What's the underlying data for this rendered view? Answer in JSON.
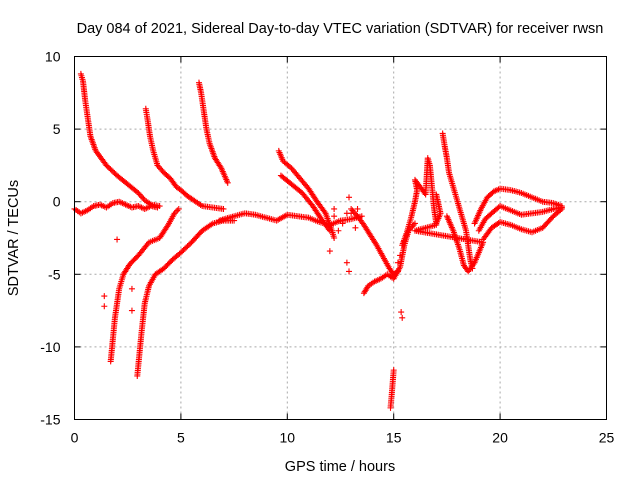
{
  "chart_data": {
    "type": "scatter",
    "title": "Day 084 of 2021, Sidereal Day-to-day VTEC variation (SDTVAR) for receiver rwsn",
    "xlabel": "GPS time / hours",
    "ylabel": "SDTVAR / TECUs",
    "xlim": [
      0,
      25
    ],
    "ylim": [
      -15,
      10
    ],
    "xticks": [
      0,
      5,
      10,
      15,
      20,
      25
    ],
    "yticks": [
      -15,
      -10,
      -5,
      0,
      5,
      10
    ],
    "grid": true,
    "marker": "+",
    "color": "#ff0000",
    "series": [
      {
        "name": "arc-1-descending",
        "points": [
          [
            0.3,
            8.8
          ],
          [
            0.4,
            8.3
          ],
          [
            0.5,
            7.0
          ],
          [
            0.6,
            6.0
          ],
          [
            0.75,
            4.5
          ],
          [
            1.0,
            3.5
          ],
          [
            1.5,
            2.5
          ],
          [
            2.0,
            1.8
          ],
          [
            2.5,
            1.2
          ],
          [
            3.0,
            0.6
          ],
          [
            3.3,
            0.1
          ],
          [
            3.6,
            -0.2
          ],
          [
            4.0,
            -0.3
          ]
        ]
      },
      {
        "name": "baseline-early",
        "points": [
          [
            0.0,
            -0.5
          ],
          [
            0.3,
            -0.8
          ],
          [
            0.6,
            -0.6
          ],
          [
            0.9,
            -0.3
          ],
          [
            1.2,
            -0.2
          ],
          [
            1.5,
            -0.4
          ],
          [
            1.8,
            -0.1
          ],
          [
            2.1,
            0.0
          ],
          [
            2.4,
            -0.2
          ],
          [
            2.7,
            -0.4
          ],
          [
            3.0,
            -0.3
          ],
          [
            3.3,
            -0.5
          ],
          [
            3.6,
            -0.3
          ],
          [
            3.9,
            -0.4
          ]
        ]
      },
      {
        "name": "arc-2-descending",
        "points": [
          [
            3.35,
            6.4
          ],
          [
            3.45,
            5.5
          ],
          [
            3.55,
            4.5
          ],
          [
            3.7,
            3.5
          ],
          [
            3.9,
            2.5
          ],
          [
            4.2,
            2.0
          ],
          [
            4.5,
            1.6
          ],
          [
            4.8,
            1.0
          ],
          [
            5.0,
            0.8
          ],
          [
            5.3,
            0.4
          ],
          [
            5.7,
            0.0
          ],
          [
            6.0,
            -0.3
          ],
          [
            6.5,
            -0.4
          ],
          [
            7.0,
            -0.5
          ]
        ]
      },
      {
        "name": "arc-3-descending",
        "points": [
          [
            5.85,
            8.2
          ],
          [
            5.95,
            7.5
          ],
          [
            6.05,
            6.5
          ],
          [
            6.2,
            5.0
          ],
          [
            6.35,
            4.0
          ],
          [
            6.6,
            3.0
          ],
          [
            6.9,
            2.3
          ],
          [
            7.2,
            1.3
          ]
        ]
      },
      {
        "name": "rise-from-minus-11",
        "points": [
          [
            1.7,
            -11.0
          ],
          [
            1.8,
            -9.5
          ],
          [
            1.9,
            -8.0
          ],
          [
            2.0,
            -7.0
          ],
          [
            2.1,
            -6.0
          ],
          [
            2.3,
            -5.0
          ],
          [
            2.6,
            -4.3
          ],
          [
            3.0,
            -3.7
          ],
          [
            3.5,
            -2.8
          ],
          [
            4.0,
            -2.5
          ],
          [
            4.4,
            -1.6
          ],
          [
            4.7,
            -0.8
          ],
          [
            4.9,
            -0.5
          ]
        ]
      },
      {
        "name": "rise-from-minus-12",
        "points": [
          [
            2.95,
            -12.0
          ],
          [
            3.05,
            -10.5
          ],
          [
            3.15,
            -9.0
          ],
          [
            3.3,
            -7.0
          ],
          [
            3.5,
            -5.8
          ],
          [
            3.8,
            -5.0
          ],
          [
            4.2,
            -4.6
          ],
          [
            4.6,
            -4.0
          ],
          [
            5.0,
            -3.5
          ],
          [
            5.5,
            -2.8
          ],
          [
            6.0,
            -2.0
          ],
          [
            6.5,
            -1.5
          ],
          [
            7.0,
            -1.3
          ],
          [
            7.5,
            -1.3
          ]
        ]
      },
      {
        "name": "isolated-early",
        "points": [
          [
            1.4,
            -6.5
          ],
          [
            1.4,
            -7.2
          ],
          [
            2.0,
            -2.6
          ],
          [
            2.7,
            -6.0
          ],
          [
            2.7,
            -7.5
          ]
        ]
      },
      {
        "name": "mid-baseline",
        "points": [
          [
            6.8,
            -1.3
          ],
          [
            7.5,
            -1.0
          ],
          [
            8.0,
            -0.8
          ],
          [
            8.5,
            -0.9
          ],
          [
            9.0,
            -1.1
          ],
          [
            9.5,
            -1.3
          ],
          [
            10.0,
            -0.9
          ],
          [
            10.5,
            -1.0
          ],
          [
            11.0,
            -1.1
          ],
          [
            11.5,
            -1.4
          ],
          [
            12.0,
            -1.6
          ],
          [
            12.5,
            -1.3
          ],
          [
            13.0,
            -1.2
          ],
          [
            13.5,
            -1.0
          ]
        ]
      },
      {
        "name": "arc-4-descending",
        "points": [
          [
            9.6,
            3.5
          ],
          [
            9.8,
            2.8
          ],
          [
            10.2,
            2.3
          ],
          [
            10.6,
            1.6
          ],
          [
            11.0,
            0.9
          ],
          [
            11.4,
            0.0
          ],
          [
            11.8,
            -0.8
          ],
          [
            12.1,
            -2.0
          ],
          [
            12.2,
            -2.5
          ]
        ]
      },
      {
        "name": "arc-4b",
        "points": [
          [
            9.7,
            1.8
          ],
          [
            10.2,
            1.2
          ],
          [
            10.7,
            0.6
          ],
          [
            11.2,
            -0.3
          ],
          [
            11.6,
            -1.2
          ],
          [
            12.0,
            -2.0
          ]
        ]
      },
      {
        "name": "scatter-12-14",
        "points": [
          [
            12.2,
            -1.0
          ],
          [
            12.4,
            -2.0
          ],
          [
            12.6,
            -1.5
          ],
          [
            12.8,
            -0.8
          ],
          [
            12.9,
            0.3
          ],
          [
            13.0,
            -0.8
          ],
          [
            13.2,
            -1.8
          ],
          [
            12.0,
            -3.4
          ],
          [
            12.8,
            -4.2
          ],
          [
            12.9,
            -4.8
          ],
          [
            12.2,
            -0.5
          ],
          [
            13.3,
            -0.5
          ]
        ]
      },
      {
        "name": "descent-to-minus-5",
        "points": [
          [
            13.0,
            -0.5
          ],
          [
            13.3,
            -1.0
          ],
          [
            13.6,
            -1.6
          ],
          [
            13.9,
            -2.3
          ],
          [
            14.2,
            -3.0
          ],
          [
            14.5,
            -3.8
          ],
          [
            14.8,
            -4.6
          ],
          [
            15.0,
            -5.0
          ],
          [
            15.2,
            -4.8
          ]
        ]
      },
      {
        "name": "low-cluster",
        "points": [
          [
            13.6,
            -6.3
          ],
          [
            13.8,
            -5.8
          ],
          [
            14.1,
            -5.5
          ],
          [
            14.4,
            -5.3
          ],
          [
            14.7,
            -5.0
          ],
          [
            15.0,
            -5.3
          ],
          [
            15.3,
            -4.5
          ],
          [
            15.5,
            -3.0
          ],
          [
            15.7,
            -2.0
          ],
          [
            16.0,
            -1.5
          ]
        ]
      },
      {
        "name": "dip-near-15",
        "points": [
          [
            14.85,
            -14.2
          ],
          [
            14.9,
            -13.4
          ],
          [
            14.95,
            -12.5
          ],
          [
            15.0,
            -11.6
          ]
        ]
      },
      {
        "name": "points-near-15-5",
        "points": [
          [
            15.35,
            -7.6
          ],
          [
            15.4,
            -8.0
          ],
          [
            15.3,
            -3.7
          ],
          [
            15.2,
            -4.2
          ],
          [
            15.5,
            -2.7
          ],
          [
            15.6,
            -2.3
          ]
        ]
      },
      {
        "name": "late-rise-cluster",
        "points": [
          [
            15.4,
            -3.0
          ],
          [
            15.6,
            -2.2
          ],
          [
            15.8,
            -1.2
          ],
          [
            16.0,
            0.0
          ],
          [
            16.1,
            0.8
          ],
          [
            16.0,
            1.5
          ],
          [
            16.5,
            0.5
          ],
          [
            16.6,
            3.0
          ],
          [
            16.7,
            2.5
          ],
          [
            16.9,
            -0.5
          ],
          [
            17.0,
            -1.5
          ],
          [
            17.2,
            -0.8
          ],
          [
            17.0,
            0.5
          ]
        ]
      },
      {
        "name": "arc-5-descending",
        "points": [
          [
            17.3,
            4.7
          ],
          [
            17.4,
            3.8
          ],
          [
            17.5,
            3.0
          ],
          [
            17.6,
            2.0
          ],
          [
            17.8,
            1.0
          ],
          [
            18.0,
            0.0
          ],
          [
            18.2,
            -1.0
          ],
          [
            18.4,
            -2.0
          ],
          [
            18.5,
            -3.0
          ],
          [
            18.6,
            -4.0
          ],
          [
            18.7,
            -4.6
          ]
        ]
      },
      {
        "name": "late-lows",
        "points": [
          [
            17.5,
            -1.0
          ],
          [
            17.8,
            -2.0
          ],
          [
            18.1,
            -3.3
          ],
          [
            18.3,
            -4.4
          ],
          [
            18.5,
            -4.8
          ],
          [
            18.8,
            -4.2
          ],
          [
            19.0,
            -3.5
          ],
          [
            19.2,
            -2.8
          ],
          [
            16.0,
            -2.0
          ],
          [
            16.5,
            -1.8
          ],
          [
            17.0,
            -1.6
          ]
        ]
      },
      {
        "name": "late-upper-arc",
        "points": [
          [
            18.8,
            -1.5
          ],
          [
            19.1,
            -0.5
          ],
          [
            19.4,
            0.3
          ],
          [
            19.7,
            0.7
          ],
          [
            20.0,
            0.9
          ],
          [
            20.5,
            0.8
          ],
          [
            21.0,
            0.6
          ],
          [
            21.5,
            0.3
          ],
          [
            22.0,
            0.0
          ],
          [
            22.5,
            -0.1
          ],
          [
            22.9,
            -0.3
          ]
        ]
      },
      {
        "name": "late-middle-arc",
        "points": [
          [
            19.0,
            -2.0
          ],
          [
            19.3,
            -1.2
          ],
          [
            19.6,
            -0.8
          ],
          [
            20.0,
            -0.3
          ],
          [
            20.5,
            -0.6
          ],
          [
            21.0,
            -0.9
          ],
          [
            21.5,
            -0.8
          ],
          [
            22.0,
            -0.7
          ],
          [
            22.5,
            -0.5
          ],
          [
            22.9,
            -0.4
          ]
        ]
      },
      {
        "name": "late-lower-arc",
        "points": [
          [
            19.2,
            -2.6
          ],
          [
            19.6,
            -1.8
          ],
          [
            20.0,
            -1.4
          ],
          [
            20.5,
            -1.6
          ],
          [
            21.0,
            -1.9
          ],
          [
            21.5,
            -2.1
          ],
          [
            22.0,
            -1.8
          ],
          [
            22.5,
            -1.0
          ],
          [
            22.9,
            -0.5
          ]
        ]
      }
    ]
  }
}
